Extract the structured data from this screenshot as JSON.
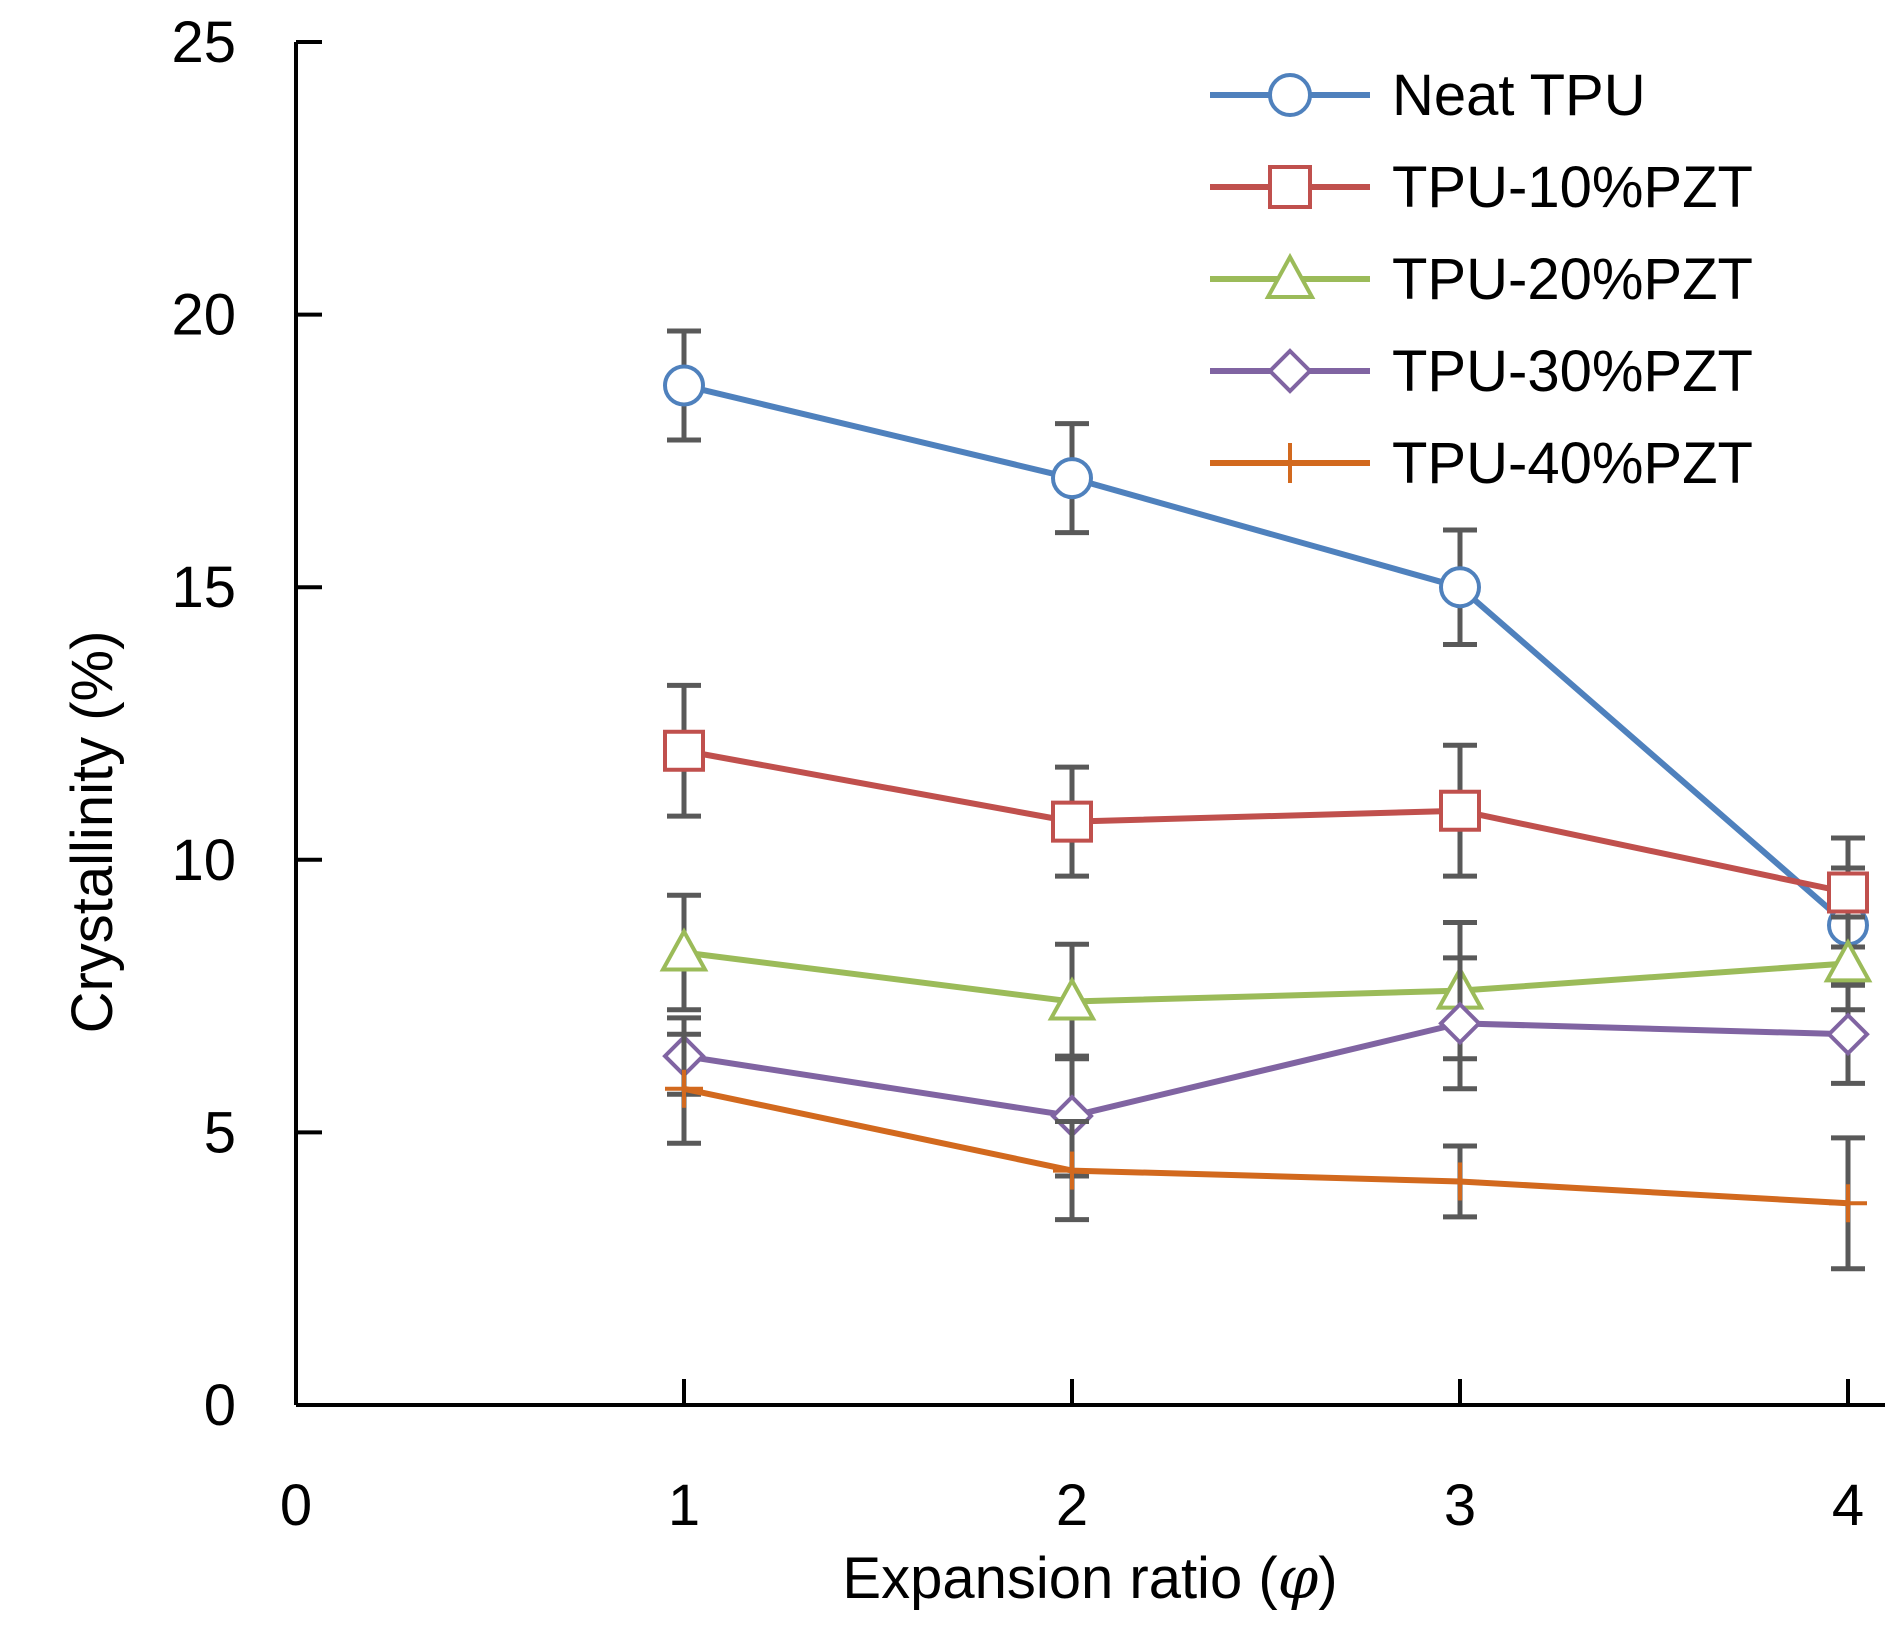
{
  "chart_data": {
    "type": "line",
    "title": "",
    "xlabel": "Expansion ratio (",
    "xlabel_symbol": "φ",
    "xlabel_close": ")",
    "ylabel": "Crystallinity (%)",
    "xlim": [
      0,
      4.1
    ],
    "ylim": [
      0,
      25
    ],
    "x_ticks": [
      0,
      1,
      2,
      3,
      4
    ],
    "y_ticks": [
      0,
      5,
      10,
      15,
      20,
      25
    ],
    "x": [
      1,
      2,
      3,
      4
    ],
    "legend_position": "top-right",
    "grid": false,
    "error_bar_color": "#595959",
    "series": [
      {
        "name": "Neat TPU",
        "color": "#4f81bd",
        "marker": "circle",
        "values": [
          18.7,
          17.0,
          15.0,
          8.8
        ],
        "errors": [
          1.0,
          1.0,
          1.05,
          1.05
        ]
      },
      {
        "name": "TPU-10%PZT",
        "color": "#c0504d",
        "marker": "square",
        "values": [
          12.0,
          10.7,
          10.9,
          9.4
        ],
        "errors": [
          1.2,
          1.0,
          1.2,
          1.0
        ]
      },
      {
        "name": "TPU-20%PZT",
        "color": "#9bbb59",
        "marker": "triangle",
        "values": [
          8.3,
          7.4,
          7.6,
          8.1
        ],
        "errors": [
          1.05,
          1.05,
          1.25,
          0.85
        ]
      },
      {
        "name": "TPU-30%PZT",
        "color": "#8064a2",
        "marker": "diamond",
        "values": [
          6.4,
          5.3,
          7.0,
          6.8
        ],
        "errors": [
          0.7,
          1.1,
          1.2,
          0.9
        ]
      },
      {
        "name": "TPU-40%PZT",
        "color": "#d2691e",
        "marker": "plus",
        "values": [
          5.8,
          4.3,
          4.1,
          3.7
        ],
        "errors": [
          1.0,
          0.9,
          0.65,
          1.2
        ]
      }
    ]
  }
}
